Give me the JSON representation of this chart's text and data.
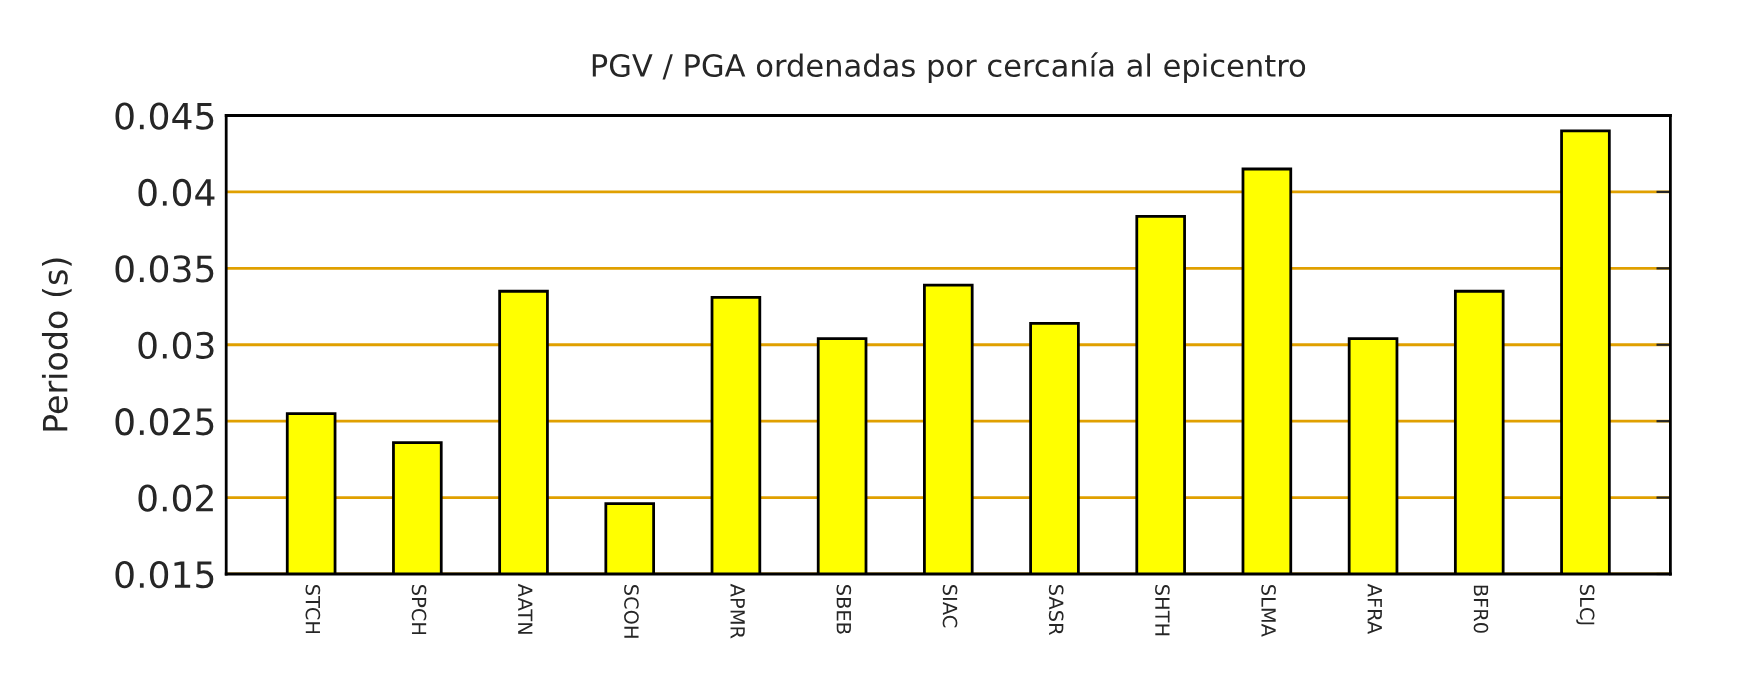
{
  "chart_data": {
    "type": "bar",
    "title": "PGV / PGA ordenadas por cercanía al epicentro",
    "ylabel": "Periodo (s)",
    "categories": [
      "STCH",
      "SPCH",
      "AATN",
      "SCOH",
      "APMR",
      "SBEB",
      "SIAC",
      "SASR",
      "SHTH",
      "SLMA",
      "AFRA",
      "BFR0",
      "SLCJ"
    ],
    "values": [
      0.0255,
      0.0236,
      0.0335,
      0.0196,
      0.0331,
      0.0304,
      0.0339,
      0.0314,
      0.0384,
      0.0415,
      0.0304,
      0.0335,
      0.044
    ],
    "color": "#ffff00",
    "ylim": [
      0.015,
      0.045
    ],
    "yticks": [
      {
        "value": 0.015,
        "label": "0.015"
      },
      {
        "value": 0.02,
        "label": "0.02"
      },
      {
        "value": 0.025,
        "label": "0.025"
      },
      {
        "value": 0.03,
        "label": "0.03"
      },
      {
        "value": 0.035,
        "label": "0.035"
      },
      {
        "value": 0.04,
        "label": "0.04"
      },
      {
        "value": 0.045,
        "label": "0.045"
      }
    ],
    "grid": "y"
  }
}
